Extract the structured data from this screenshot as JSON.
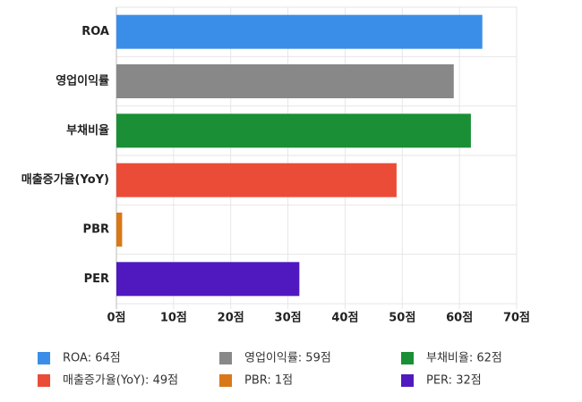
{
  "chart_data": {
    "type": "bar",
    "orientation": "horizontal",
    "categories": [
      "ROA",
      "영업이익률",
      "부채비율",
      "매출증가율(YoY)",
      "PBR",
      "PER"
    ],
    "values": [
      64,
      59,
      62,
      49,
      1,
      32
    ],
    "value_labels": [
      "ROA: 64점",
      "영업이익률: 59점",
      "부채비율: 62점",
      "매출증가율(YoY): 49점",
      "PBR: 1점",
      "PER: 32점"
    ],
    "colors": [
      "#3b8ee8",
      "#888888",
      "#1a8f35",
      "#ea4c37",
      "#d97818",
      "#5019c0"
    ],
    "xlim": [
      0,
      70
    ],
    "xticks": [
      {
        "value": 0,
        "label": "0점"
      },
      {
        "value": 10,
        "label": "10점"
      },
      {
        "value": 20,
        "label": "20점"
      },
      {
        "value": 30,
        "label": "30점"
      },
      {
        "value": 40,
        "label": "40점"
      },
      {
        "value": 50,
        "label": "50점"
      },
      {
        "value": 60,
        "label": "60점"
      },
      {
        "value": 70,
        "label": "70점"
      }
    ],
    "grid": true,
    "legend": "bottom"
  }
}
